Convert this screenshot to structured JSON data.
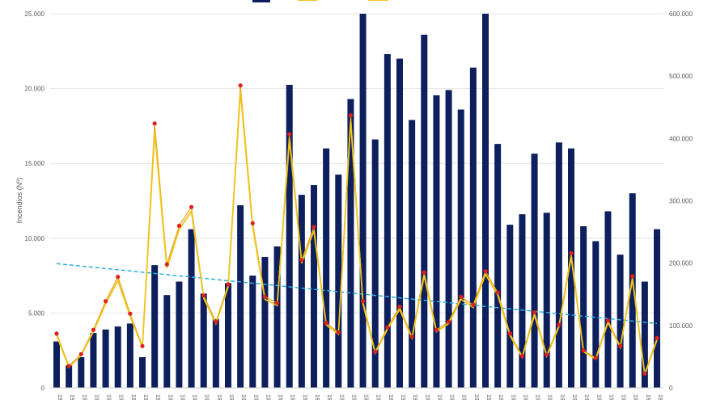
{
  "chart_data": {
    "type": "bar",
    "ylabel": "Incendios (Nº)",
    "ylim": [
      0,
      25000
    ],
    "y2lim": [
      0,
      600000
    ],
    "yticks": [
      "0",
      "5.000",
      "10.000",
      "15.000",
      "20.000",
      "25.000"
    ],
    "y2ticks": [
      "0",
      "100.000",
      "200.000",
      "300.000",
      "400.000",
      "500.000",
      "600.000"
    ],
    "grid": true,
    "legend": "top",
    "colors": {
      "bars": "#0d1f5c",
      "line_total": "#f0c419",
      "markers": "#e0201b",
      "trend": "#2ab0e0"
    },
    "series": [
      {
        "axis": "left",
        "kind": "bar",
        "values": [
          3100,
          1500,
          2050,
          3670,
          3900,
          4100,
          4300,
          2050,
          8200,
          6200,
          7100,
          10600,
          6300,
          4600,
          7000,
          12200,
          7500,
          8750,
          9450,
          20250,
          12900,
          13550,
          16000,
          14250,
          19300,
          25000,
          16600,
          22300,
          22000,
          17900,
          23600,
          19550,
          19900,
          18600,
          21400,
          25000,
          16300,
          10900,
          11600,
          15650,
          11700,
          16400,
          16000,
          10800,
          9800,
          11800,
          8900,
          13000,
          7100,
          10600
        ]
      },
      {
        "axis": "right",
        "kind": "line-markers",
        "values": [
          87000,
          35000,
          54000,
          93000,
          139000,
          178000,
          119000,
          67000,
          424000,
          198000,
          260000,
          290000,
          148000,
          106000,
          166000,
          485000,
          264000,
          146000,
          136000,
          407000,
          205000,
          258000,
          104000,
          89000,
          437000,
          139000,
          58000,
          97000,
          130000,
          82000,
          185000,
          93000,
          106000,
          146000,
          133000,
          187000,
          153000,
          87000,
          51000,
          121000,
          53000,
          101000,
          216000,
          60000,
          48000,
          108000,
          67000,
          179000,
          23000,
          80000
        ]
      },
      {
        "axis": "right",
        "kind": "line",
        "values": [
          84000,
          33000,
          52000,
          90000,
          135000,
          172000,
          115000,
          65000,
          410000,
          192000,
          254000,
          283000,
          144000,
          103000,
          162000,
          475000,
          258000,
          142000,
          132000,
          398000,
          200000,
          252000,
          101000,
          86000,
          428000,
          135000,
          56000,
          94000,
          126000,
          80000,
          180000,
          90000,
          103000,
          142000,
          129000,
          182000,
          149000,
          84000,
          49000,
          117000,
          51000,
          98000,
          210000,
          58000,
          46000,
          105000,
          65000,
          174000,
          21000,
          77000
        ]
      }
    ],
    "trendline": {
      "axis": "left",
      "start": 8300,
      "end": 4300
    }
  }
}
